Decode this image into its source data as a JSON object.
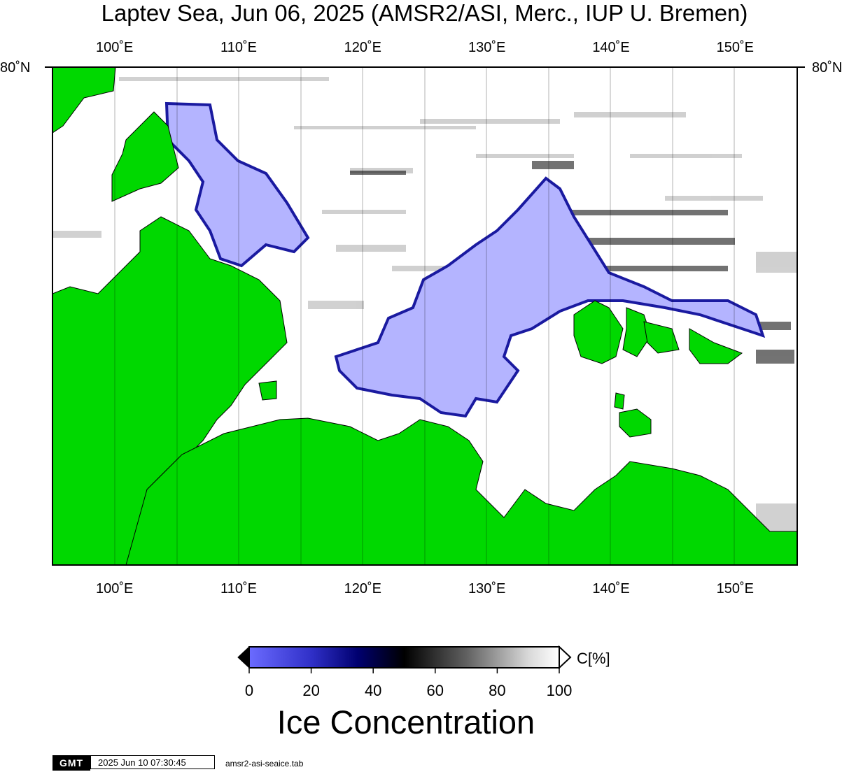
{
  "title": "Laptev Sea, Jun 06, 2025 (AMSR2/ASI, Merc., IUP U. Bremen)",
  "longitude_labels": [
    "100˚E",
    "110˚E",
    "120˚E",
    "130˚E",
    "140˚E",
    "150˚E"
  ],
  "longitudes": [
    100,
    110,
    120,
    130,
    140,
    150
  ],
  "latitude_label": "80˚N",
  "map_extent": {
    "lon_min": 95,
    "lon_max": 155
  },
  "colors": {
    "land": "#00d800",
    "open_water": "#b4b4ff",
    "ice_low": "#6060ff",
    "ice_mid": "#000070",
    "ice_high": "#ffffff",
    "frame": "#000000"
  },
  "colorbar": {
    "title": "Ice Concentration",
    "unit": "C[%]",
    "ticks": [
      "0",
      "20",
      "40",
      "60",
      "80",
      "100"
    ],
    "range": [
      0,
      100
    ]
  },
  "footer": {
    "logo": "GMT",
    "timestamp": "2025 Jun 10 07:30:45",
    "file": "amsr2-asi-seaice.tab"
  }
}
